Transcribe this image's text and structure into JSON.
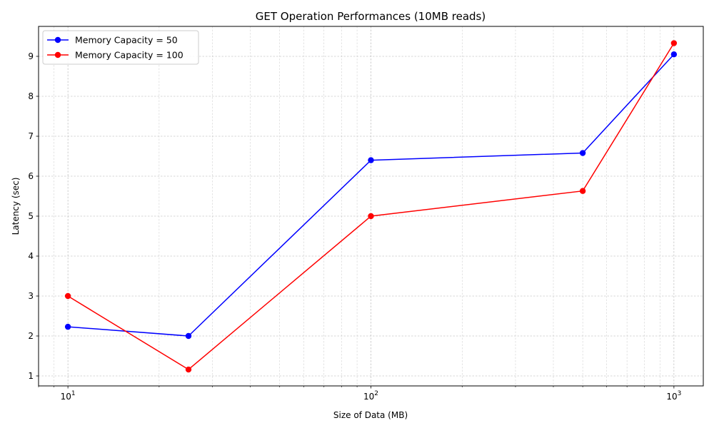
{
  "chart_data": {
    "type": "line",
    "title": "GET Operation Performances (10MB reads)",
    "xlabel": "Size of Data (MB)",
    "ylabel": "Latency (sec)",
    "xscale": "log",
    "xlim": [
      8,
      1250
    ],
    "ylim": [
      0.75,
      9.75
    ],
    "x": [
      10,
      25,
      100,
      500,
      1000
    ],
    "xticks": [
      {
        "value": 10,
        "base": "10",
        "exp": "1"
      },
      {
        "value": 100,
        "base": "10",
        "exp": "2"
      },
      {
        "value": 1000,
        "base": "10",
        "exp": "3"
      }
    ],
    "yticks": [
      1,
      2,
      3,
      4,
      5,
      6,
      7,
      8,
      9
    ],
    "grid": true,
    "legend_position": "top-left",
    "series": [
      {
        "name": "Memory Capacity = 50",
        "color": "#0000ff",
        "values": [
          2.23,
          2.0,
          6.4,
          6.58,
          9.05
        ]
      },
      {
        "name": "Memory Capacity = 100",
        "color": "#ff0000",
        "values": [
          3.0,
          1.16,
          5.0,
          5.63,
          9.33
        ]
      }
    ]
  }
}
